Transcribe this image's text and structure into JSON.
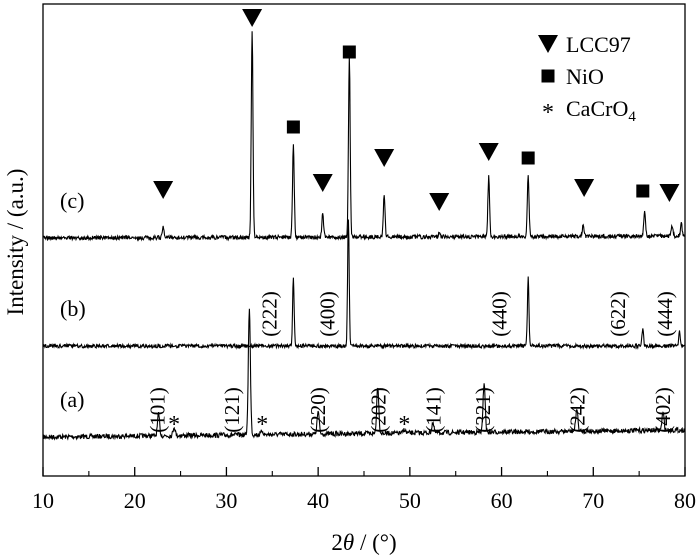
{
  "chart_data": {
    "type": "line",
    "title": "",
    "xlabel_prefix": "2",
    "xlabel_theta": "θ",
    "xlabel_suffix": " / (°)",
    "ylabel": "Intensity / (a.u.)",
    "xlim": [
      10,
      80
    ],
    "x_ticks": [
      10,
      20,
      30,
      40,
      50,
      60,
      70,
      80
    ],
    "x_tick_labels": [
      "10",
      "20",
      "30",
      "40",
      "50",
      "60",
      "70",
      "80"
    ],
    "y_ticks_shown": false,
    "grid": false,
    "legend_position": "top-right",
    "legend": [
      {
        "marker": "triangle-down",
        "label": "LCC97"
      },
      {
        "marker": "square",
        "label": "NiO"
      },
      {
        "marker": "asterisk",
        "label": "CaCrO",
        "subscript": "4"
      }
    ],
    "series": [
      {
        "name": "(a)",
        "peaks": [
          {
            "x": 22.6,
            "h": 0.17
          },
          {
            "x": 24.3,
            "h": 0.07
          },
          {
            "x": 32.5,
            "h": 1.0
          },
          {
            "x": 33.9,
            "h": 0.03
          },
          {
            "x": 40.0,
            "h": 0.18
          },
          {
            "x": 46.5,
            "h": 0.38
          },
          {
            "x": 49.4,
            "h": 0.03
          },
          {
            "x": 52.5,
            "h": 0.08
          },
          {
            "x": 58.1,
            "h": 0.4
          },
          {
            "x": 68.2,
            "h": 0.18
          },
          {
            "x": 77.6,
            "h": 0.14
          }
        ],
        "hkl_labels": [
          {
            "x": 22.5,
            "text": "(101)"
          },
          {
            "x": 30.6,
            "text": "(121)"
          },
          {
            "x": 40.0,
            "text": "(220)"
          },
          {
            "x": 46.6,
            "text": "(202)"
          },
          {
            "x": 52.6,
            "text": "(141)"
          },
          {
            "x": 58.0,
            "text": "(321)"
          },
          {
            "x": 68.3,
            "text": "(242)"
          },
          {
            "x": 77.6,
            "text": "(402)"
          }
        ],
        "impurity_marks": [
          24.3,
          33.9,
          49.4
        ]
      },
      {
        "name": "(b)",
        "peaks": [
          {
            "x": 37.3,
            "h": 0.53
          },
          {
            "x": 43.3,
            "h": 1.0
          },
          {
            "x": 62.9,
            "h": 0.54
          },
          {
            "x": 75.4,
            "h": 0.14
          },
          {
            "x": 79.4,
            "h": 0.11
          }
        ],
        "hkl_labels": [
          {
            "x": 34.7,
            "text": "(222)"
          },
          {
            "x": 41.0,
            "text": "(400)"
          },
          {
            "x": 59.8,
            "text": "(440)"
          },
          {
            "x": 72.7,
            "text": "(622)"
          },
          {
            "x": 77.8,
            "text": "(444)"
          }
        ]
      },
      {
        "name": "(c)",
        "peaks": [
          {
            "x": 23.1,
            "h": 0.06
          },
          {
            "x": 32.8,
            "h": 1.0
          },
          {
            "x": 37.3,
            "h": 0.44
          },
          {
            "x": 40.5,
            "h": 0.12
          },
          {
            "x": 43.4,
            "h": 0.87
          },
          {
            "x": 47.2,
            "h": 0.2
          },
          {
            "x": 53.2,
            "h": 0.02
          },
          {
            "x": 58.6,
            "h": 0.29
          },
          {
            "x": 62.9,
            "h": 0.3
          },
          {
            "x": 68.9,
            "h": 0.06
          },
          {
            "x": 75.6,
            "h": 0.13
          },
          {
            "x": 78.6,
            "h": 0.05
          },
          {
            "x": 79.6,
            "h": 0.06
          }
        ],
        "markers": [
          {
            "x": 23.1,
            "type": "triangle"
          },
          {
            "x": 32.8,
            "type": "triangle"
          },
          {
            "x": 37.3,
            "type": "square"
          },
          {
            "x": 40.5,
            "type": "triangle"
          },
          {
            "x": 43.4,
            "type": "square"
          },
          {
            "x": 47.2,
            "type": "triangle"
          },
          {
            "x": 53.2,
            "type": "triangle"
          },
          {
            "x": 58.6,
            "type": "triangle"
          },
          {
            "x": 62.9,
            "type": "square"
          },
          {
            "x": 69.0,
            "type": "triangle"
          },
          {
            "x": 75.4,
            "type": "square"
          },
          {
            "x": 78.3,
            "type": "triangle"
          }
        ]
      }
    ]
  }
}
